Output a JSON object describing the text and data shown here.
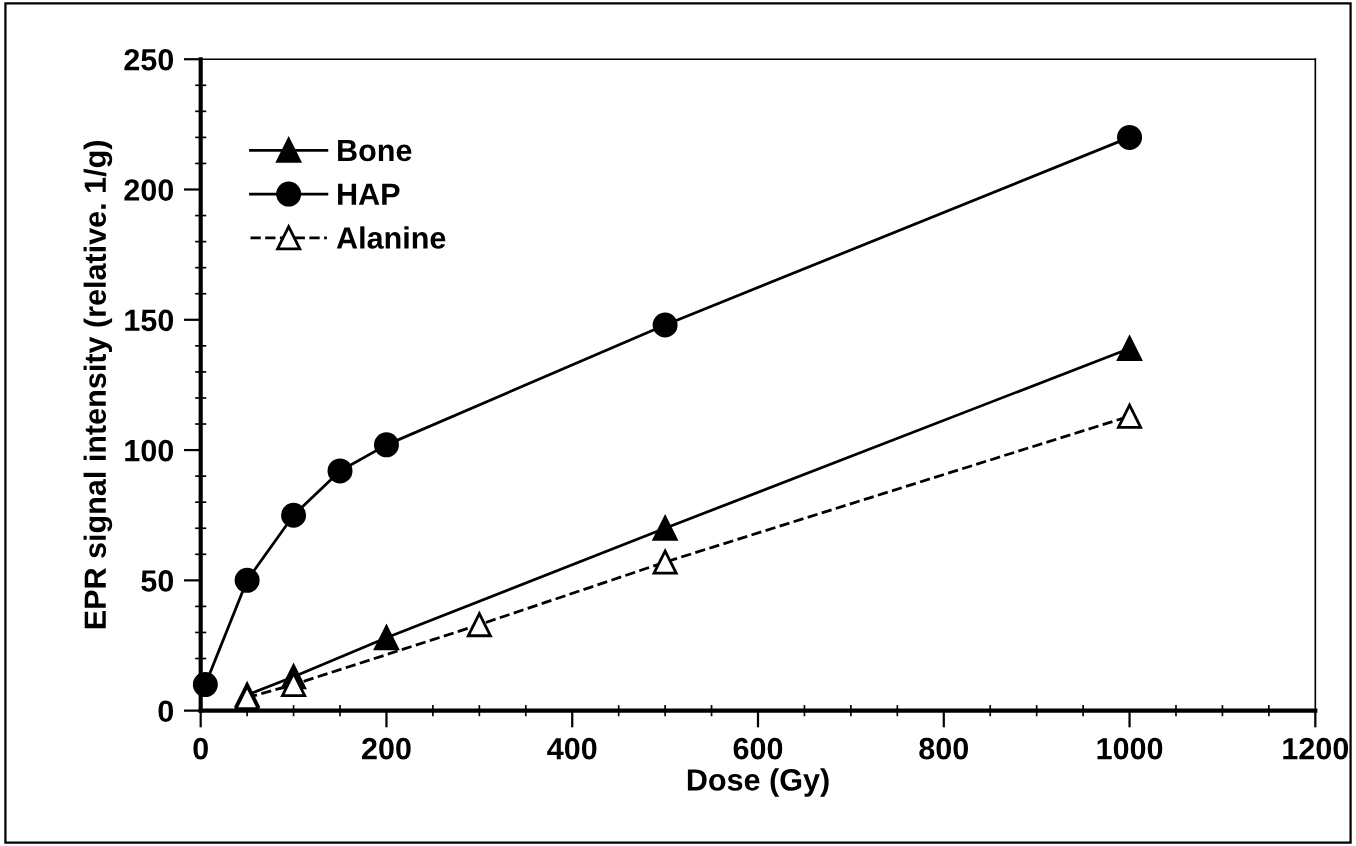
{
  "chart_data": {
    "type": "line",
    "xlabel": "Dose (Gy)",
    "ylabel": "EPR signal intensity (relative. 1/g)",
    "xlim": [
      0,
      1200
    ],
    "xticks": [
      0,
      200,
      400,
      600,
      800,
      1000,
      1200
    ],
    "ylim": [
      0,
      250
    ],
    "yticks": [
      0,
      50,
      100,
      150,
      200,
      250
    ],
    "grid": false,
    "legend": "top left",
    "series": [
      {
        "name": "Bone",
        "color": "#000000",
        "marker": "triangle",
        "line_style": "solid",
        "x": [
          50,
          100,
          200,
          500,
          1000
        ],
        "values": [
          6,
          13,
          28,
          70,
          139
        ]
      },
      {
        "name": "HAP",
        "color": "#000000",
        "marker": "circle",
        "line_style": "solid",
        "x": [
          5,
          50,
          100,
          150,
          200,
          500,
          1000
        ],
        "values": [
          10,
          50,
          75,
          92,
          102,
          148,
          220
        ]
      },
      {
        "name": "Alanine",
        "color": "#000000",
        "marker": "triangle",
        "line_style": "dashed",
        "x": [
          50,
          100,
          300,
          500,
          1000
        ],
        "values": [
          5,
          10,
          33,
          57,
          113
        ]
      }
    ]
  }
}
